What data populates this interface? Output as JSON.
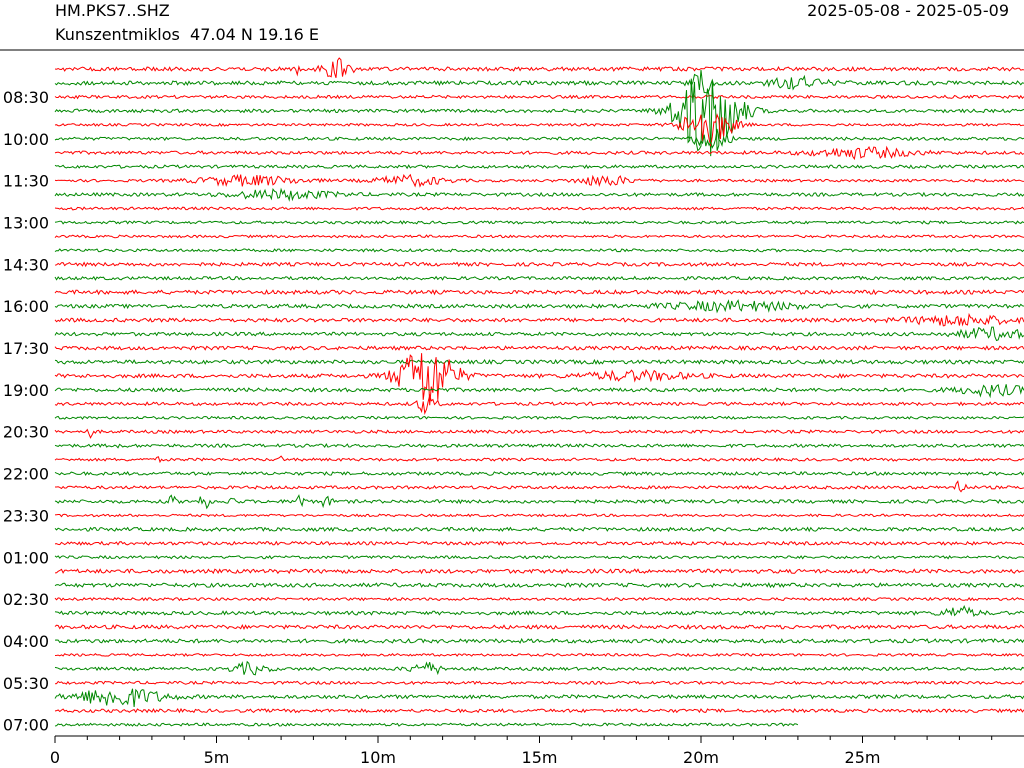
{
  "header": {
    "station": "HM.PKS7..SHZ",
    "location": "Kunszentmiklos  47.04 N 19.16 E",
    "date_range": "2025-05-08 - 2025-05-09"
  },
  "chart_data": {
    "type": "line",
    "title": "",
    "xlabel": "",
    "ylabel": "",
    "x_unit": "minutes",
    "xlim": [
      0,
      30
    ],
    "x_ticks": [
      0,
      5,
      10,
      15,
      20,
      25
    ],
    "x_tick_labels": [
      "0",
      "5m",
      "10m",
      "15m",
      "20m",
      "25m"
    ],
    "row_minutes": 30,
    "row_count": 48,
    "last_row_end_minute": 23,
    "y_tick_labels": [
      "08:30",
      "10:00",
      "11:30",
      "13:00",
      "14:30",
      "16:00",
      "17:30",
      "19:00",
      "20:30",
      "22:00",
      "23:30",
      "01:00",
      "02:30",
      "04:00",
      "05:30",
      "07:00"
    ],
    "y_tick_every_rows": 3,
    "y_tick_first_row": 2,
    "colors": [
      "#ff0000",
      "#008800"
    ],
    "events": [
      {
        "row": 0,
        "minute": 8.7,
        "amp": 0.7,
        "width": 0.4
      },
      {
        "row": 0,
        "minute": 7.5,
        "amp": 0.4,
        "width": 0.1
      },
      {
        "row": 1,
        "minute": 20.0,
        "amp": 0.9,
        "width": 0.3
      },
      {
        "row": 1,
        "minute": 23.0,
        "amp": 0.4,
        "width": 0.8
      },
      {
        "row": 3,
        "minute": 20.2,
        "amp": 3.5,
        "width": 0.9
      },
      {
        "row": 4,
        "minute": 20.2,
        "amp": 1.5,
        "width": 0.7
      },
      {
        "row": 5,
        "minute": 20.3,
        "amp": 0.8,
        "width": 0.5
      },
      {
        "row": 6,
        "minute": 25.0,
        "amp": 0.35,
        "width": 1.5
      },
      {
        "row": 8,
        "minute": 6.0,
        "amp": 0.35,
        "width": 1.5
      },
      {
        "row": 8,
        "minute": 11.0,
        "amp": 0.35,
        "width": 1.0
      },
      {
        "row": 8,
        "minute": 17.0,
        "amp": 0.35,
        "width": 0.8
      },
      {
        "row": 9,
        "minute": 7.0,
        "amp": 0.3,
        "width": 1.5
      },
      {
        "row": 17,
        "minute": 21.0,
        "amp": 0.3,
        "width": 2.0
      },
      {
        "row": 18,
        "minute": 28.0,
        "amp": 0.35,
        "width": 1.5
      },
      {
        "row": 19,
        "minute": 29.0,
        "amp": 0.4,
        "width": 1.0
      },
      {
        "row": 22,
        "minute": 11.5,
        "amp": 2.4,
        "width": 0.8
      },
      {
        "row": 22,
        "minute": 18.0,
        "amp": 0.3,
        "width": 1.5
      },
      {
        "row": 23,
        "minute": 29.0,
        "amp": 0.35,
        "width": 1.0
      },
      {
        "row": 24,
        "minute": 11.5,
        "amp": 0.6,
        "width": 0.3
      },
      {
        "row": 26,
        "minute": 1.1,
        "amp": 0.4,
        "width": 0.08
      },
      {
        "row": 27,
        "minute": 2.0,
        "amp": 0.25,
        "width": 0.05
      },
      {
        "row": 28,
        "minute": 3.2,
        "amp": 0.2,
        "width": 0.05
      },
      {
        "row": 28,
        "minute": 7.0,
        "amp": 0.4,
        "width": 0.05
      },
      {
        "row": 30,
        "minute": 28.0,
        "amp": 0.6,
        "width": 0.15
      },
      {
        "row": 31,
        "minute": 3.6,
        "amp": 0.6,
        "width": 0.1
      },
      {
        "row": 31,
        "minute": 4.6,
        "amp": 0.6,
        "width": 0.15
      },
      {
        "row": 31,
        "minute": 5.5,
        "amp": 0.5,
        "width": 0.1
      },
      {
        "row": 31,
        "minute": 7.6,
        "amp": 0.8,
        "width": 0.1
      },
      {
        "row": 31,
        "minute": 8.4,
        "amp": 0.4,
        "width": 0.15
      },
      {
        "row": 39,
        "minute": 28.0,
        "amp": 0.4,
        "width": 0.5
      },
      {
        "row": 43,
        "minute": 6.0,
        "amp": 0.4,
        "width": 0.5
      },
      {
        "row": 43,
        "minute": 11.5,
        "amp": 0.4,
        "width": 0.5
      },
      {
        "row": 45,
        "minute": 2.0,
        "amp": 0.7,
        "width": 1.2
      }
    ]
  }
}
